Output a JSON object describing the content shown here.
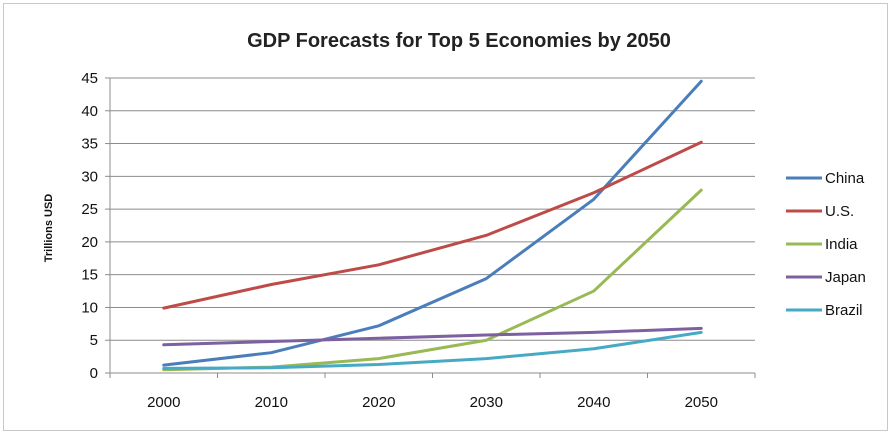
{
  "chart_data": {
    "type": "line",
    "title": "GDP Forecasts for Top 5 Economies by 2050",
    "xlabel": "",
    "ylabel": "Trillions USD",
    "x": [
      2000,
      2010,
      2020,
      2030,
      2040,
      2050
    ],
    "ylim": [
      0,
      45
    ],
    "yticks": [
      0,
      5,
      10,
      15,
      20,
      25,
      30,
      35,
      40,
      45
    ],
    "grid": "horizontal",
    "legend_position": "right",
    "series": [
      {
        "name": "China",
        "color": "#4a7ebb",
        "values": [
          1.2,
          3.1,
          7.2,
          14.4,
          26.5,
          44.5
        ]
      },
      {
        "name": "U.S.",
        "color": "#be4b48",
        "values": [
          9.9,
          13.5,
          16.5,
          21.0,
          27.5,
          35.2
        ]
      },
      {
        "name": "India",
        "color": "#98b954",
        "values": [
          0.5,
          0.9,
          2.2,
          5.0,
          12.5,
          27.9
        ]
      },
      {
        "name": "Japan",
        "color": "#7d60a0",
        "values": [
          4.3,
          4.8,
          5.3,
          5.8,
          6.2,
          6.8
        ]
      },
      {
        "name": "Brazil",
        "color": "#46aac5",
        "values": [
          0.7,
          0.8,
          1.3,
          2.2,
          3.7,
          6.2
        ]
      }
    ]
  }
}
